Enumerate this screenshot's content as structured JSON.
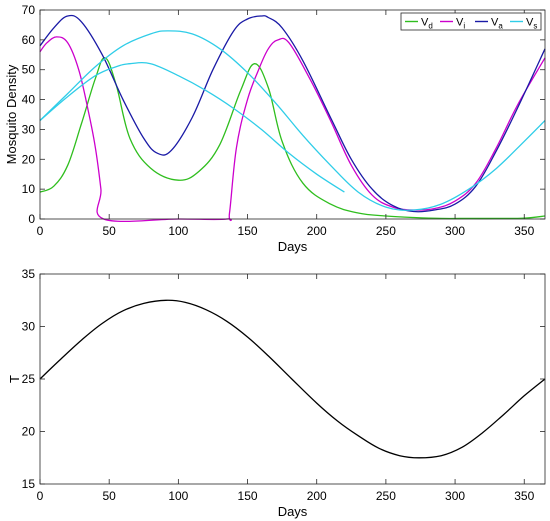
{
  "chart_data": [
    {
      "type": "line",
      "xlabel": "Days",
      "ylabel": "Mosquito Density",
      "xlim": [
        0,
        365
      ],
      "ylim": [
        0,
        70
      ],
      "xticks": [
        0,
        50,
        100,
        150,
        200,
        250,
        300,
        350
      ],
      "yticks": [
        0,
        10,
        20,
        30,
        40,
        50,
        60,
        70
      ],
      "xtick_labels": [
        "0",
        "50",
        "100",
        "150",
        "200",
        "250",
        "300",
        "350"
      ],
      "ytick_labels": [
        "0",
        "10",
        "20",
        "30",
        "40",
        "50",
        "60",
        "70"
      ],
      "legend_position": "top-right",
      "series": [
        {
          "name": "V",
          "subscript": "d",
          "color": "#2fbe1e",
          "x": [
            0,
            10,
            20,
            30,
            40,
            47,
            55,
            65,
            80,
            100,
            115,
            130,
            145,
            155,
            165,
            175,
            190,
            210,
            230,
            250,
            270,
            290,
            310,
            330,
            350,
            365
          ],
          "y": [
            9,
            11,
            18,
            32,
            47,
            54,
            45,
            27,
            17,
            13,
            16,
            25,
            43,
            52,
            44,
            26,
            12,
            5,
            2,
            1,
            0.5,
            0.2,
            0.2,
            0.2,
            0.3,
            1
          ]
        },
        {
          "name": "V",
          "subscript": "i",
          "color": "#cc00cc",
          "x": [
            0,
            5,
            12,
            20,
            28,
            35,
            40,
            44,
            46,
            100,
            135,
            137,
            142,
            150,
            158,
            165,
            172,
            180,
            195,
            210,
            225,
            240,
            255,
            270,
            285,
            300,
            315,
            330,
            345,
            365
          ],
          "y": [
            56,
            59,
            61,
            59,
            50,
            36,
            24,
            10,
            0,
            0,
            0,
            2,
            24,
            40,
            50,
            57,
            60,
            59,
            47,
            33,
            18,
            8,
            4,
            3,
            3.5,
            6,
            12,
            24,
            38,
            54
          ]
        },
        {
          "name": "V",
          "subscript": "a",
          "color": "#1a1aa6",
          "x": [
            0,
            10,
            20,
            30,
            45,
            60,
            75,
            85,
            95,
            110,
            125,
            140,
            150,
            160,
            165,
            175,
            190,
            210,
            225,
            240,
            255,
            270,
            285,
            300,
            315,
            330,
            345,
            365
          ],
          "y": [
            58,
            64,
            68,
            66,
            55,
            40,
            27,
            22,
            23,
            34,
            50,
            63,
            67,
            68,
            67.5,
            64,
            53,
            34,
            20,
            10,
            4.5,
            2.5,
            3,
            5,
            11,
            23,
            37,
            57
          ]
        },
        {
          "name": "V",
          "subscript": "s",
          "color": "#2fcde8",
          "x": [
            0,
            20,
            40,
            60,
            80,
            92,
            110,
            130,
            150,
            170,
            190,
            210,
            230,
            250,
            270,
            290,
            310,
            330,
            350,
            365
          ],
          "y": [
            33,
            42,
            51,
            58,
            62,
            63,
            62,
            57,
            49,
            39,
            28,
            18,
            9,
            4,
            3,
            5,
            10,
            17,
            26,
            33
          ]
        },
        {
          "name": "",
          "color": "#2fcde8",
          "x": [
            0,
            20,
            40,
            55,
            65,
            80,
            100,
            120,
            140,
            160,
            180,
            200,
            220
          ],
          "y": [
            33,
            41,
            48,
            51,
            52,
            52,
            48,
            43,
            37,
            30,
            22,
            15,
            9
          ]
        }
      ]
    },
    {
      "type": "line",
      "xlabel": "Days",
      "ylabel": "T",
      "xlim": [
        0,
        365
      ],
      "ylim": [
        15,
        35
      ],
      "xticks": [
        0,
        50,
        100,
        150,
        200,
        250,
        300,
        350
      ],
      "yticks": [
        15,
        20,
        25,
        30,
        35
      ],
      "xtick_labels": [
        "0",
        "50",
        "100",
        "150",
        "200",
        "250",
        "300",
        "350"
      ],
      "ytick_labels": [
        "15",
        "20",
        "25",
        "30",
        "35"
      ],
      "series": [
        {
          "name": "",
          "color": "#000000",
          "x": [
            0,
            15,
            30,
            45,
            60,
            75,
            91,
            105,
            120,
            135,
            150,
            165,
            182,
            200,
            215,
            230,
            245,
            260,
            274,
            290,
            305,
            320,
            335,
            350,
            365
          ],
          "y": [
            25.0,
            26.9,
            28.7,
            30.3,
            31.5,
            32.2,
            32.5,
            32.3,
            31.6,
            30.5,
            29.0,
            27.2,
            25.0,
            22.7,
            21.0,
            19.6,
            18.4,
            17.7,
            17.5,
            17.7,
            18.5,
            19.9,
            21.6,
            23.4,
            25.0
          ]
        }
      ]
    }
  ]
}
